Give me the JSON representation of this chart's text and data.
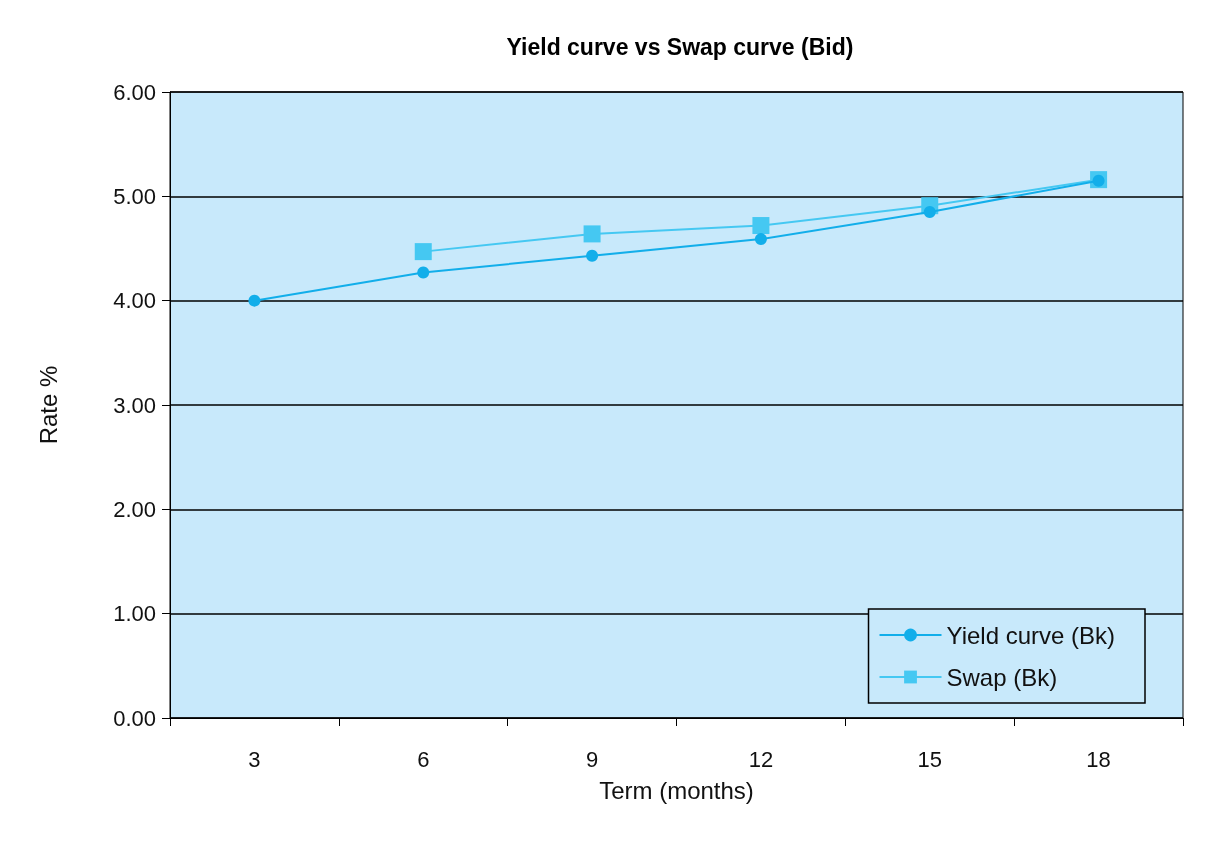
{
  "chart_data": {
    "type": "line",
    "title": "Yield curve vs Swap curve (Bid)",
    "xlabel": "Term (months)",
    "ylabel": "Rate %",
    "categories": [
      "3",
      "6",
      "9",
      "12",
      "15",
      "18"
    ],
    "series": [
      {
        "name": "Yield curve (Bk)",
        "color": "#12aeea",
        "marker": "circle",
        "values": [
          4.0,
          4.27,
          4.43,
          4.59,
          4.85,
          5.15
        ]
      },
      {
        "name": "Swap (Bk)",
        "color": "#45c8f2",
        "marker": "square",
        "values": [
          null,
          4.47,
          4.64,
          4.72,
          4.91,
          5.16
        ]
      }
    ],
    "ylim": [
      0,
      6
    ],
    "yticks": [
      {
        "value": 0,
        "label": "0.00"
      },
      {
        "value": 1,
        "label": "1.00"
      },
      {
        "value": 2,
        "label": "2.00"
      },
      {
        "value": 3,
        "label": "3.00"
      },
      {
        "value": 4,
        "label": "4.00"
      },
      {
        "value": 5,
        "label": "5.00"
      },
      {
        "value": 6,
        "label": "6.00"
      }
    ],
    "grid": "y",
    "legend": "bottom right",
    "line_style": "solid"
  }
}
